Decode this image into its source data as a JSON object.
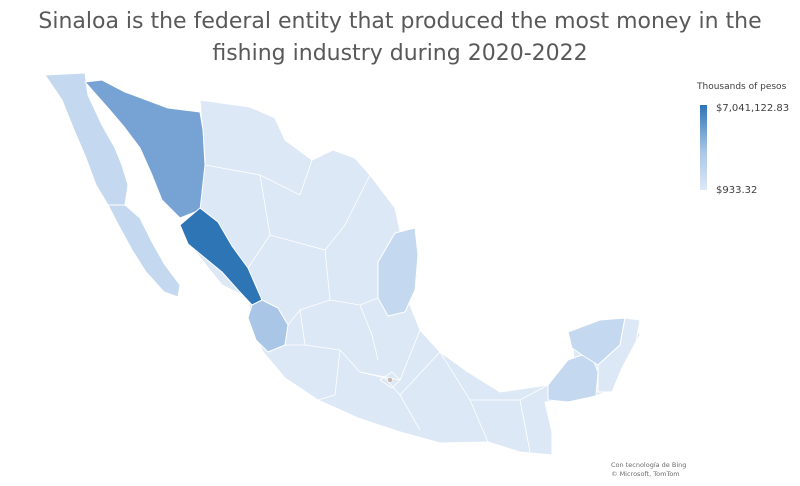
{
  "title_line1": "Sinaloa is the federal entity that produced the most money in the",
  "title_line2": "fishing industry during 2020-2022",
  "legend": {
    "title": "Thousands of pesos",
    "max_label": "$7,041,122.83",
    "min_label": "$933.32"
  },
  "credits": {
    "line1": "Con tecnología de Bing",
    "line2": "© Microsoft, TomTom"
  },
  "colors": {
    "base": "#dce8f6",
    "light": "#c4d8ef",
    "medium": "#a9c6e6",
    "mid_dark": "#76a3d3",
    "dark": "#2e75b6",
    "border": "#ffffff"
  },
  "regions": [
    {
      "name": "Sinaloa",
      "shade": "dark"
    },
    {
      "name": "Sonora",
      "shade": "mid_dark"
    },
    {
      "name": "Baja California",
      "shade": "light"
    },
    {
      "name": "Baja California Sur",
      "shade": "light"
    },
    {
      "name": "Nayarit",
      "shade": "medium"
    },
    {
      "name": "Tamaulipas",
      "shade": "light"
    },
    {
      "name": "Campeche",
      "shade": "light"
    },
    {
      "name": "Yucatán",
      "shade": "light"
    },
    {
      "name": "Quintana Roo",
      "shade": "base"
    },
    {
      "name": "Veracruz",
      "shade": "base"
    },
    {
      "name": "Chihuahua",
      "shade": "base"
    },
    {
      "name": "Coahuila",
      "shade": "base"
    },
    {
      "name": "Nuevo León",
      "shade": "base"
    },
    {
      "name": "Durango",
      "shade": "base"
    },
    {
      "name": "Zacatecas",
      "shade": "base"
    },
    {
      "name": "San Luis Potosí",
      "shade": "base"
    },
    {
      "name": "Jalisco",
      "shade": "base"
    },
    {
      "name": "Colima",
      "shade": "base"
    },
    {
      "name": "Michoacán",
      "shade": "base"
    },
    {
      "name": "Guerrero",
      "shade": "base"
    },
    {
      "name": "Oaxaca",
      "shade": "base"
    },
    {
      "name": "Chiapas",
      "shade": "base"
    },
    {
      "name": "Tabasco",
      "shade": "base"
    },
    {
      "name": "Puebla",
      "shade": "base"
    },
    {
      "name": "Estado de México",
      "shade": "base"
    },
    {
      "name": "Hidalgo",
      "shade": "base"
    },
    {
      "name": "Querétaro",
      "shade": "base"
    },
    {
      "name": "Guanajuato",
      "shade": "base"
    },
    {
      "name": "Aguascalientes",
      "shade": "base"
    },
    {
      "name": "Morelos",
      "shade": "base"
    },
    {
      "name": "Tlaxcala",
      "shade": "base"
    },
    {
      "name": "Ciudad de México",
      "shade": "base"
    }
  ]
}
